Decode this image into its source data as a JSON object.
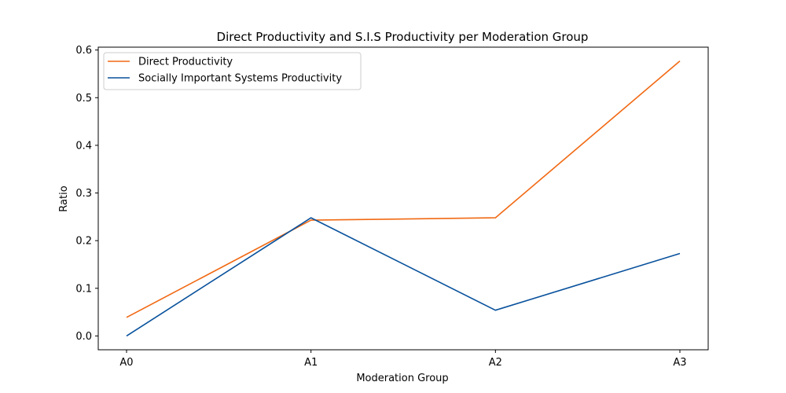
{
  "chart_data": {
    "type": "line",
    "title": "Direct Productivity and S.I.S Productivity per Moderation Group",
    "xlabel": "Moderation Group",
    "ylabel": "Ratio",
    "categories": [
      "A0",
      "A1",
      "A2",
      "A3"
    ],
    "ylim": [
      -0.029,
      0.606
    ],
    "yticks": [
      0.0,
      0.1,
      0.2,
      0.3,
      0.4,
      0.5,
      0.6
    ],
    "ytick_labels": [
      "0.0",
      "0.1",
      "0.2",
      "0.3",
      "0.4",
      "0.5",
      "0.6"
    ],
    "grid": false,
    "legend_position": "top-left",
    "series": [
      {
        "name": "Direct Productivity",
        "color": "#f16913",
        "values": [
          0.039,
          0.243,
          0.248,
          0.577
        ]
      },
      {
        "name": "Socially Important Systems Productivity",
        "color": "#08519c",
        "values": [
          0.0,
          0.248,
          0.054,
          0.173
        ]
      }
    ]
  }
}
